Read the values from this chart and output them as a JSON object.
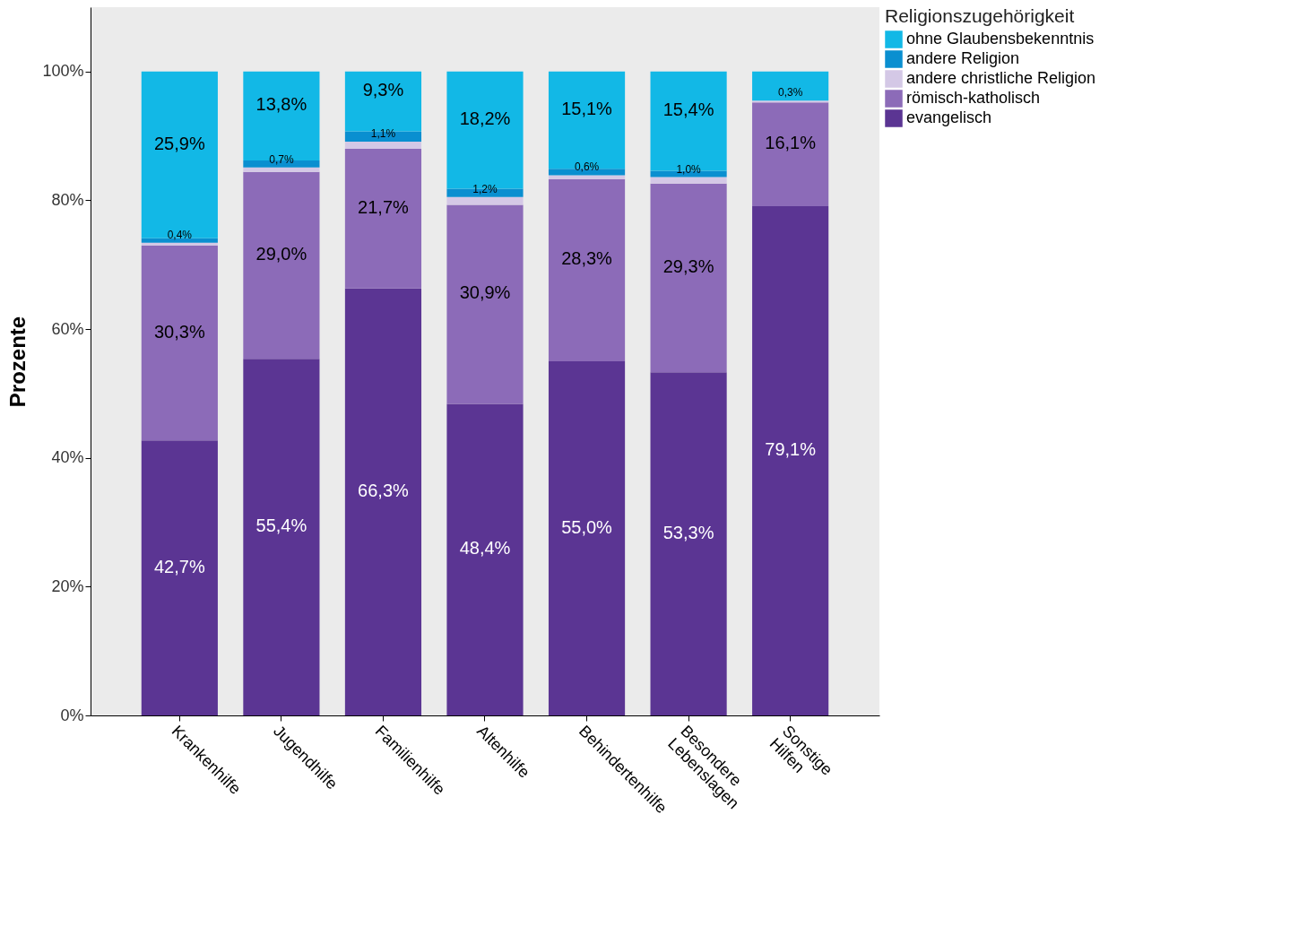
{
  "chart_data": {
    "type": "bar",
    "stacked": true,
    "ylabel": "Prozente",
    "legend_title": "Religionszugehörigkeit",
    "legend": "top right",
    "grid": false,
    "categories": [
      "Krankenhilfe",
      "Jugendhilfe",
      "Familienhilfe",
      "Altenhilfe",
      "Behindertenhilfe",
      "Besondere Lebenslagen",
      "Sonstige Hilfen"
    ],
    "ylim": [
      0,
      110
    ],
    "yticks": [
      {
        "value": 0,
        "label": "0%"
      },
      {
        "value": 20,
        "label": "20%"
      },
      {
        "value": 40,
        "label": "40%"
      },
      {
        "value": 60,
        "label": "60%"
      },
      {
        "value": 80,
        "label": "80%"
      },
      {
        "value": 100,
        "label": "100%"
      }
    ],
    "series": [
      {
        "name": "evangelisch",
        "color": "#5b3593",
        "values": [
          42.7,
          55.4,
          66.3,
          48.4,
          55.0,
          53.3,
          79.1
        ],
        "value_labels": [
          "42,7%",
          "55,4%",
          "66,3%",
          "48,4%",
          "55,0%",
          "53,3%",
          "79,1%"
        ]
      },
      {
        "name": "römisch-katholisch",
        "color": "#8c6bb8",
        "values": [
          30.3,
          29.0,
          21.7,
          30.9,
          28.3,
          29.3,
          16.1
        ],
        "value_labels": [
          "30,3%",
          "29,0%",
          "21,7%",
          "30,9%",
          "28,3%",
          "29,3%",
          "16,1%"
        ]
      },
      {
        "name": "andere christliche Religion",
        "color": "#d4c8e6",
        "values": [
          0.4,
          0.7,
          1.1,
          1.2,
          0.6,
          1.0,
          0.3
        ],
        "value_labels": [
          "0,4%",
          "0,7%",
          "1,1%",
          "1,2%",
          "0,6%",
          "1,0%",
          "0,3%"
        ]
      },
      {
        "name": "andere Religion",
        "color": "#0a8fd0",
        "values": [
          0.7,
          1.1,
          1.6,
          1.3,
          1.0,
          1.0,
          0.0
        ],
        "value_labels": [
          null,
          null,
          null,
          null,
          null,
          null,
          null
        ]
      },
      {
        "name": "ohne Glaubensbekenntnis",
        "color": "#12b8e6",
        "values": [
          25.9,
          13.8,
          9.3,
          18.2,
          15.1,
          15.4,
          4.5
        ],
        "value_labels": [
          "25,9%",
          "13,8%",
          "9,3%",
          "18,2%",
          "15,1%",
          "15,4%",
          null
        ]
      }
    ]
  }
}
